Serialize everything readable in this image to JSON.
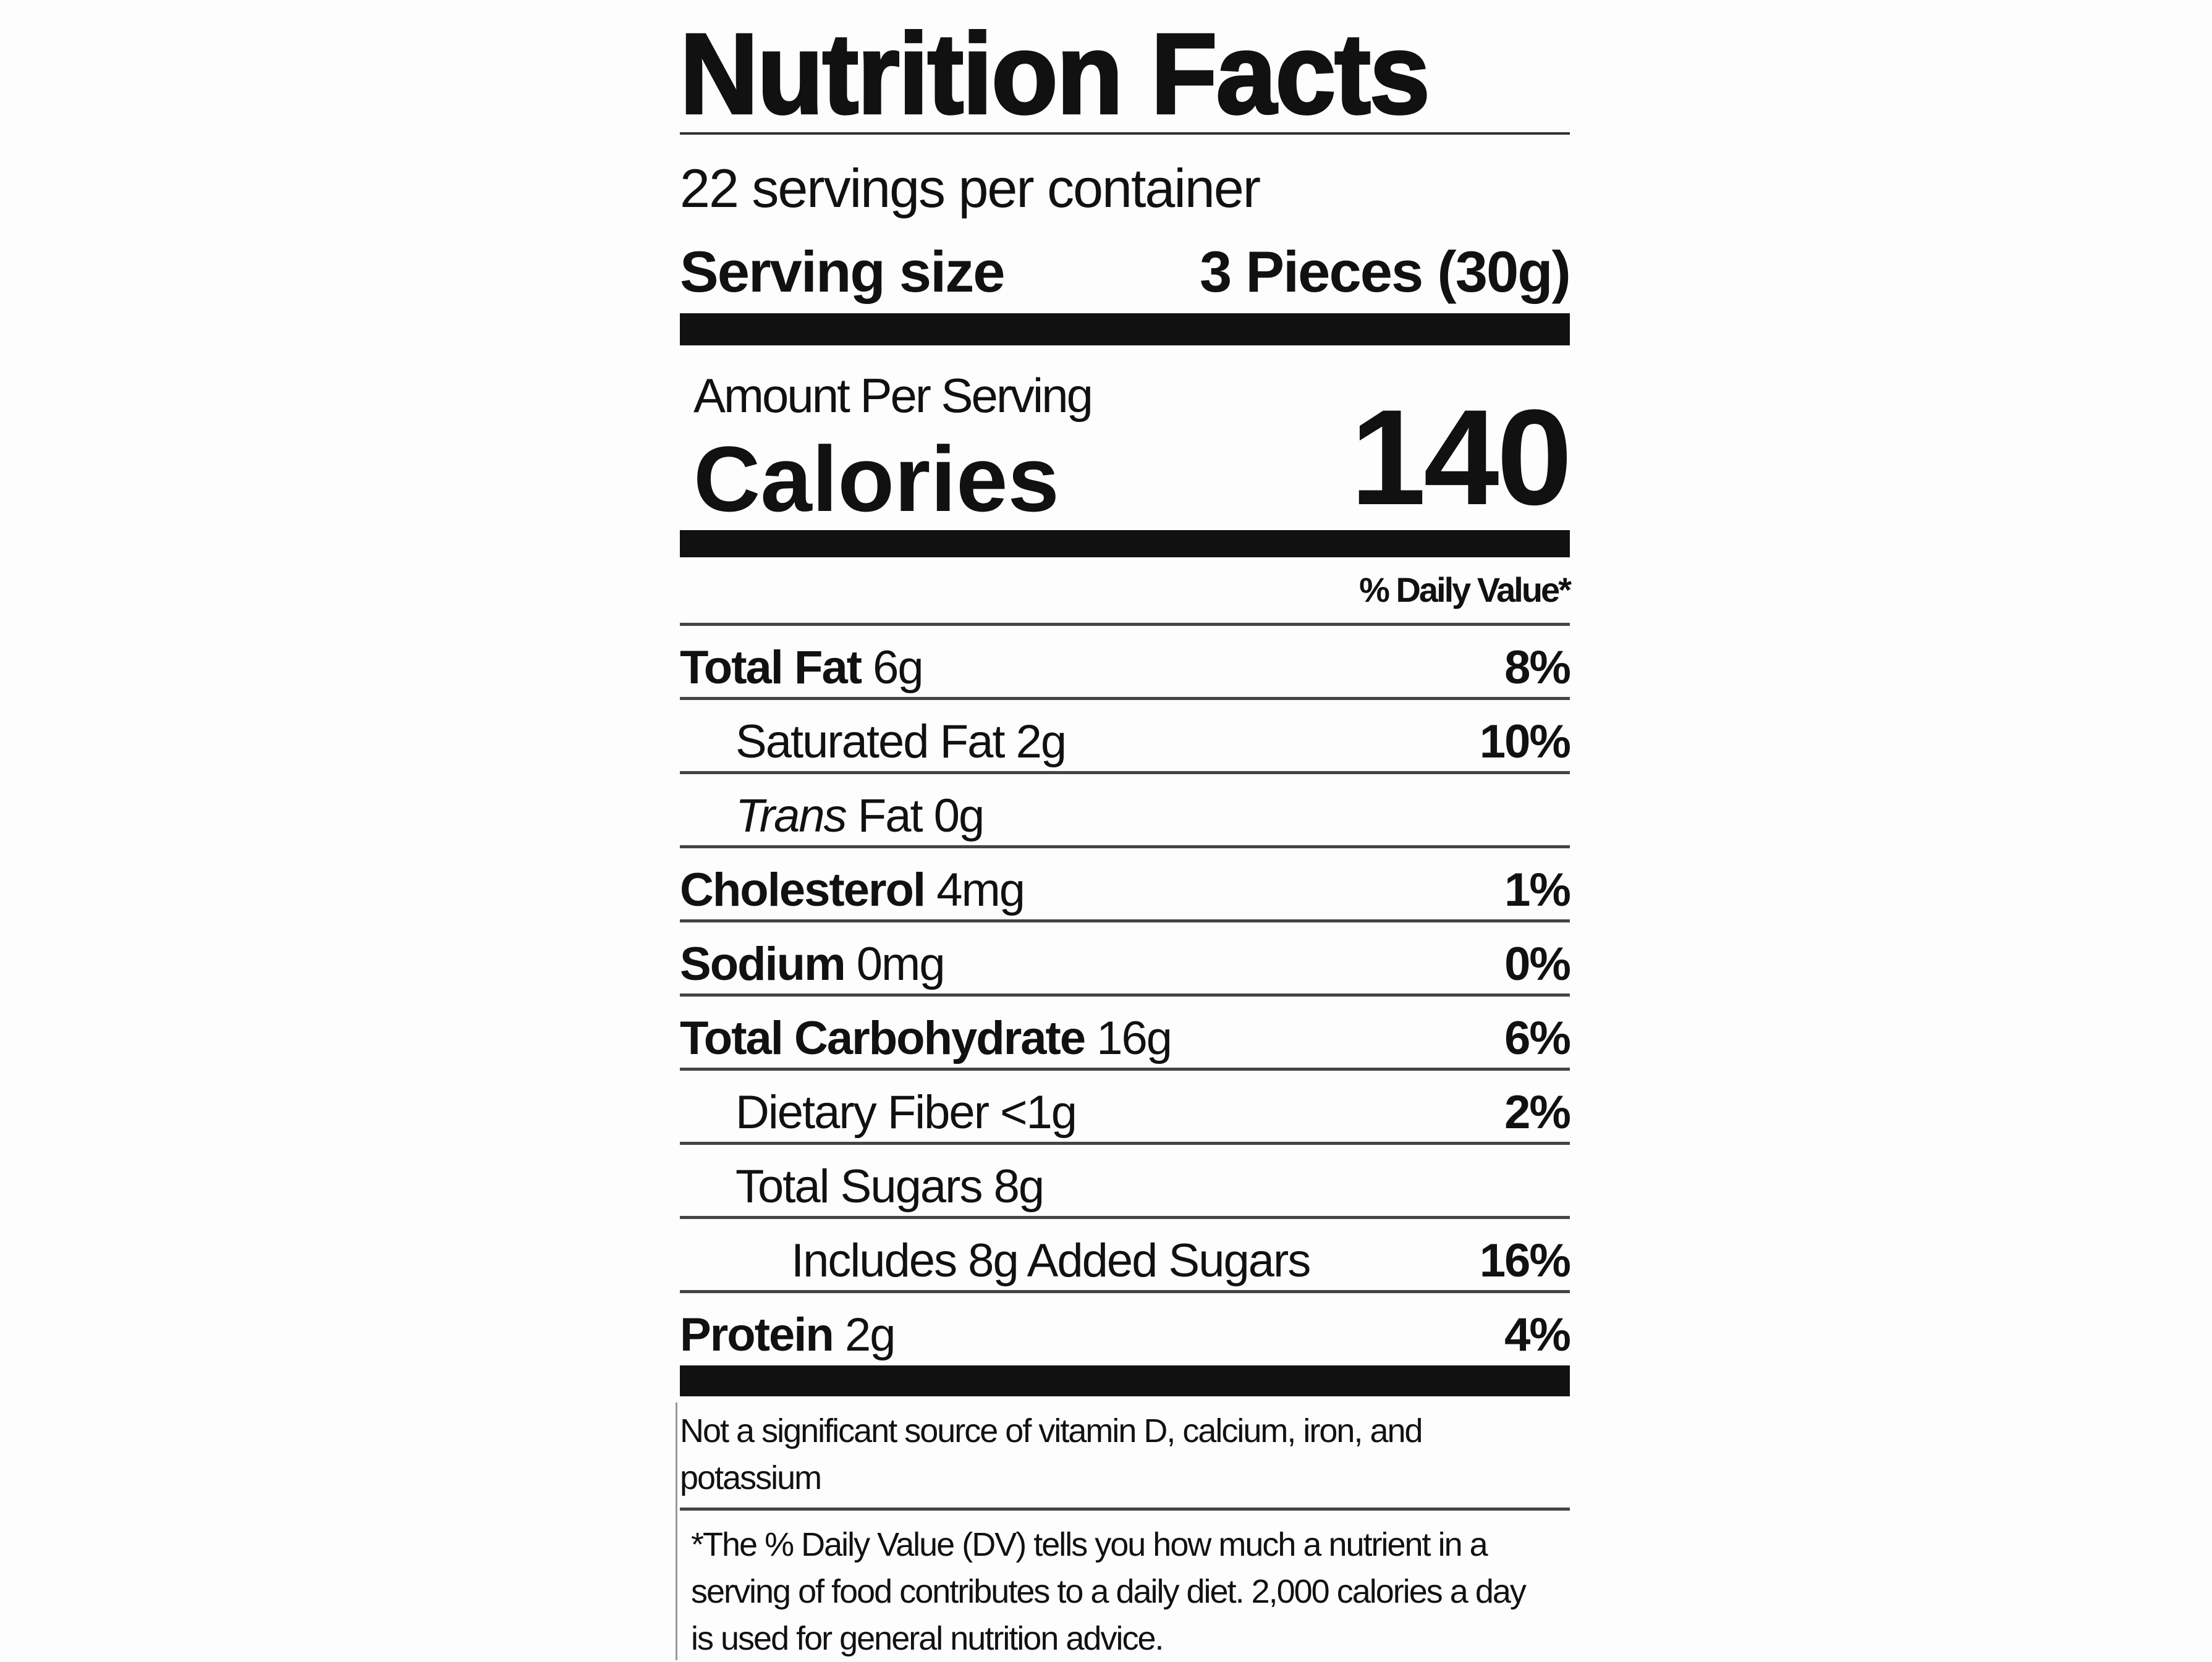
{
  "title": "Nutrition Facts",
  "servings_per_container": "22 servings per container",
  "serving_size": {
    "label": "Serving size",
    "value": "3 Pieces (30g)"
  },
  "amount_per_serving": "Amount Per Serving",
  "calories": {
    "label": "Calories",
    "value": "140"
  },
  "daily_value_header": "% Daily Value*",
  "nutrients": [
    {
      "name": "Total Fat",
      "amount": "6g",
      "dv": "8%"
    },
    {
      "name": "Saturated Fat",
      "amount": "2g",
      "dv": "10%"
    },
    {
      "name": "Trans",
      "name2": "Fat",
      "amount": "0g",
      "dv": ""
    },
    {
      "name": "Cholesterol",
      "amount": "4mg",
      "dv": "1%"
    },
    {
      "name": "Sodium",
      "amount": "0mg",
      "dv": "0%"
    },
    {
      "name": "Total Carbohydrate",
      "amount": "16g",
      "dv": "6%"
    },
    {
      "name": "Dietary Fiber",
      "amount": "<1g",
      "dv": "2%"
    },
    {
      "name": "Total Sugars",
      "amount": "8g",
      "dv": ""
    },
    {
      "name": "Includes 8g Added Sugars",
      "amount": "",
      "dv": "16%"
    },
    {
      "name": "Protein",
      "amount": "2g",
      "dv": "4%"
    }
  ],
  "footnote_vitamins": "Not a significant source of vitamin D, calcium, iron, and potassium",
  "footnote_dv": "*The % Daily Value (DV) tells you how much a nutrient in a serving of food contributes to a daily diet. 2,000 calories a day is used for general nutrition advice."
}
